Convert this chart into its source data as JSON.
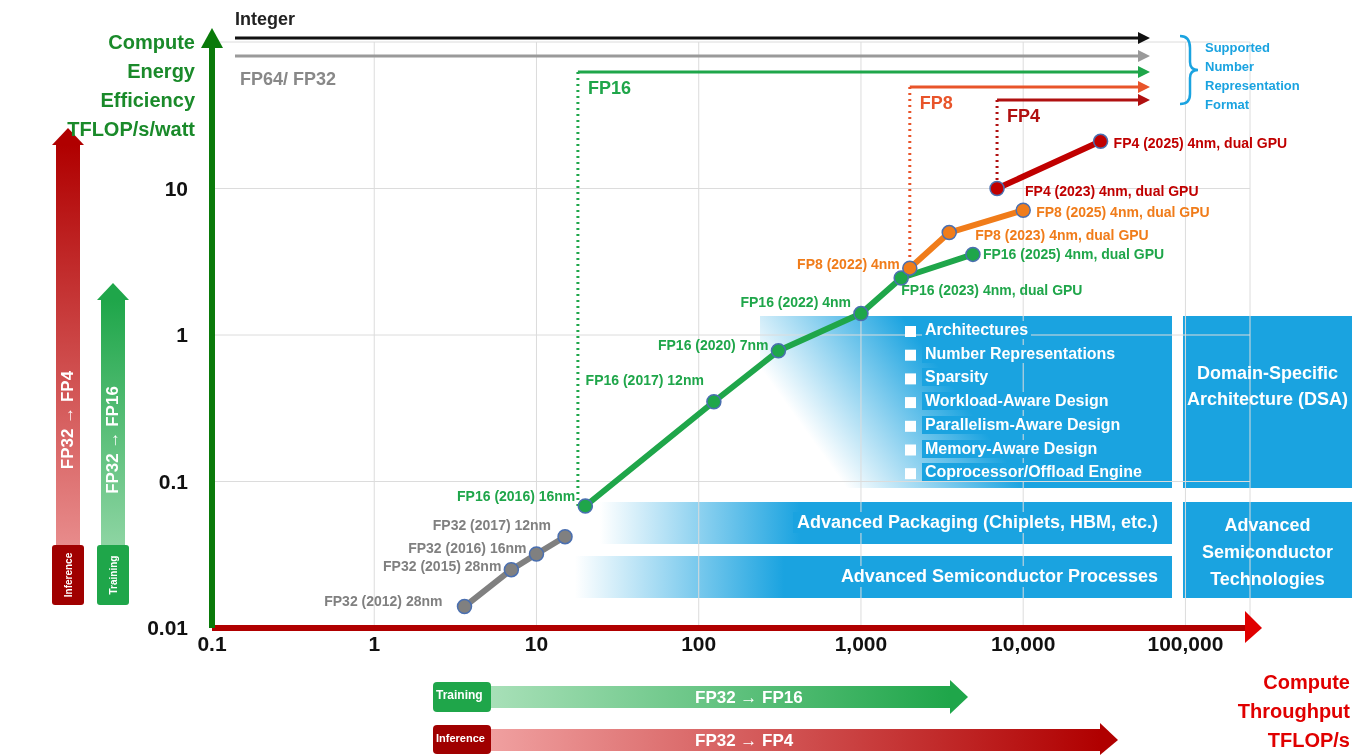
{
  "chart_data": {
    "type": "line",
    "xlabel": "Compute Throughput TFLOP/s",
    "ylabel": "Compute Energy Efficiency TFLOP/s/watt",
    "log": "xy",
    "grid": true,
    "legend": false,
    "marker": "circle",
    "line_style": "solid",
    "xlim": [
      0.1,
      250000
    ],
    "ylim": [
      0.01,
      100
    ],
    "xticks": [
      0.1,
      1,
      10,
      100,
      {
        "value": 1000,
        "label": "1,000"
      },
      {
        "value": 10000,
        "label": "10,000"
      },
      {
        "value": 100000,
        "label": "100,000"
      }
    ],
    "yticks": [
      0.01,
      0.1,
      1,
      10
    ],
    "series": [
      {
        "color": "#808080",
        "x": [
          3.6,
          7,
          10,
          15
        ],
        "values": [
          0.014,
          0.025,
          0.032,
          0.042
        ],
        "value_labels": [
          "FP32 (2012) 28nm",
          "FP32 (2015) 28nm",
          "FP32 (2016) 16nm",
          "FP32 (2017) 12nm"
        ]
      },
      {
        "color": "#1fa64a",
        "x": [
          20,
          124,
          310,
          1000,
          1770,
          4900
        ],
        "values": [
          0.068,
          0.35,
          0.78,
          1.4,
          2.45,
          3.55
        ],
        "value_labels": [
          "FP16 (2016) 16nm",
          "FP16 (2017) 12nm",
          "FP16 (2020) 7nm",
          "FP16 (2022) 4nm",
          "FP16 (2023) 4nm, dual GPU",
          "FP16 (2025) 4nm, dual GPU"
        ]
      },
      {
        "color": "#f07c1a",
        "x": [
          2000,
          3500,
          10000
        ],
        "values": [
          2.86,
          5,
          7.1
        ],
        "value_labels": [
          "FP8 (2022) 4nm",
          "FP8 (2023) 4nm, dual GPU",
          "FP8 (2025) 4nm, dual GPU"
        ]
      },
      {
        "color": "#c00000",
        "x": [
          6900,
          30000
        ],
        "values": [
          10,
          21
        ],
        "value_labels": [
          "FP4 (2023) 4nm, dual GPU",
          "FP4 (2025) 4nm, dual GPU"
        ]
      }
    ],
    "ref_lines": [
      {
        "axis": "x",
        "value": 18,
        "label": "FP16",
        "color": "#1fa64a",
        "line_style": "dotted"
      },
      {
        "axis": "x",
        "value": 2000,
        "label": "FP8",
        "color": "#e8542a",
        "line_style": "dotted"
      },
      {
        "axis": "x",
        "value": 6900,
        "label": "FP4",
        "color": "#b01010",
        "line_style": "dotted"
      }
    ],
    "annotations": [
      "Integer",
      "FP64/ FP32",
      "Supported Number Representation Format",
      "Architectures",
      "Number Representations",
      "Sparsity",
      "Workload-Aware Design",
      "Parallelism-Aware Design",
      "Memory-Aware Design",
      "Coprocessor/Offload Engine",
      "Domain-Specific Architecture (DSA)",
      "Advanced Packaging (Chiplets, HBM, etc.)",
      "Advanced Semiconductor Processes",
      "Advanced Semiconductor Technologies",
      "FP32 → FP4",
      "Inference",
      "FP32 → FP16",
      "Training",
      "Training",
      "FP32 → FP16",
      "Inference",
      "FP32 → FP4"
    ]
  }
}
